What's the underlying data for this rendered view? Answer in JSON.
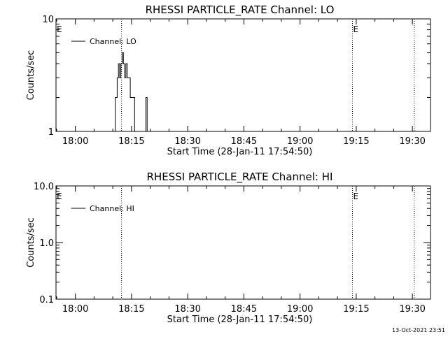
{
  "timestamp": "13-Oct-2021 23:51",
  "chart_data": [
    {
      "type": "line",
      "title": "RHESSI PARTICLE_RATE Channel: LO",
      "xlabel": "Start Time (28-Jan-11 17:54:50)",
      "ylabel": "Counts/sec",
      "yscale": "log",
      "ylim": [
        1,
        10
      ],
      "yticks": [
        "1",
        "10"
      ],
      "xlim": [
        "17:54:50",
        "19:34:50"
      ],
      "xticks": [
        "18:00",
        "18:15",
        "18:30",
        "18:45",
        "19:00",
        "19:15",
        "19:30"
      ],
      "legend": "top-left",
      "series": [
        {
          "name": "Channel: LO",
          "color": "#000000",
          "points": [
            [
              "18:10:10",
              1
            ],
            [
              "18:10:40",
              1
            ],
            [
              "18:10:40",
              2
            ],
            [
              "18:11:10",
              2
            ],
            [
              "18:11:10",
              3
            ],
            [
              "18:11:30",
              3
            ],
            [
              "18:11:30",
              4
            ],
            [
              "18:11:50",
              4
            ],
            [
              "18:11:50",
              3
            ],
            [
              "18:12:10",
              3
            ],
            [
              "18:12:10",
              4
            ],
            [
              "18:12:30",
              4
            ],
            [
              "18:12:30",
              5
            ],
            [
              "18:12:50",
              5
            ],
            [
              "18:12:50",
              4
            ],
            [
              "18:13:10",
              4
            ],
            [
              "18:13:10",
              3
            ],
            [
              "18:13:30",
              3
            ],
            [
              "18:13:30",
              4
            ],
            [
              "18:13:50",
              4
            ],
            [
              "18:13:50",
              3
            ],
            [
              "18:14:40",
              3
            ],
            [
              "18:14:40",
              2
            ],
            [
              "18:15:50",
              2
            ],
            [
              "18:15:50",
              1
            ],
            [
              "18:16:30",
              1
            ],
            [
              "18:16:30",
              1
            ],
            [
              "18:18:50",
              1
            ],
            [
              "18:18:50",
              2
            ],
            [
              "18:19:10",
              2
            ],
            [
              "18:19:10",
              1
            ]
          ]
        }
      ],
      "vlines": [
        {
          "x": "18:12:20",
          "label": ""
        },
        {
          "x": "19:14:00",
          "label": "E"
        },
        {
          "x": "19:30:30",
          "label": ""
        }
      ],
      "edge_label": "E"
    },
    {
      "type": "line",
      "title": "RHESSI PARTICLE_RATE Channel: HI",
      "xlabel": "Start Time (28-Jan-11 17:54:50)",
      "ylabel": "Counts/sec",
      "yscale": "log",
      "ylim": [
        0.1,
        10
      ],
      "yticks": [
        "10.0",
        "1.0",
        "0.1"
      ],
      "xlim": [
        "17:54:50",
        "19:34:50"
      ],
      "xticks": [
        "18:00",
        "18:15",
        "18:30",
        "18:45",
        "19:00",
        "19:15",
        "19:30"
      ],
      "legend": "top-left",
      "series": [
        {
          "name": "Channel: HI",
          "color": "#000000",
          "points": []
        }
      ],
      "vlines": [
        {
          "x": "18:12:20",
          "label": ""
        },
        {
          "x": "19:14:00",
          "label": "E"
        },
        {
          "x": "19:30:30",
          "label": ""
        }
      ],
      "edge_label": "E"
    }
  ]
}
